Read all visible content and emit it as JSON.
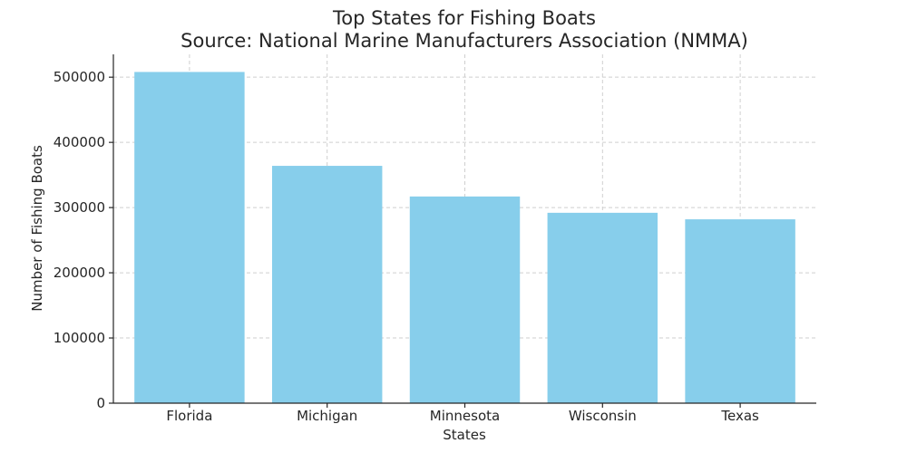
{
  "chart_data": {
    "type": "bar",
    "title": "Top States for Fishing Boats",
    "subtitle": "Source: National Marine Manufacturers Association (NMMA)",
    "xlabel": "States",
    "ylabel": "Number of Fishing Boats",
    "categories": [
      "Florida",
      "Michigan",
      "Minnesota",
      "Wisconsin",
      "Texas"
    ],
    "values": [
      508000,
      364000,
      317000,
      292000,
      282000
    ],
    "ylim": [
      0,
      535000
    ],
    "yticks": [
      0,
      100000,
      200000,
      300000,
      400000,
      500000
    ],
    "ytick_labels": [
      "0",
      "100000",
      "200000",
      "300000",
      "400000",
      "500000"
    ],
    "bar_color": "#87ceeb",
    "grid": true
  }
}
